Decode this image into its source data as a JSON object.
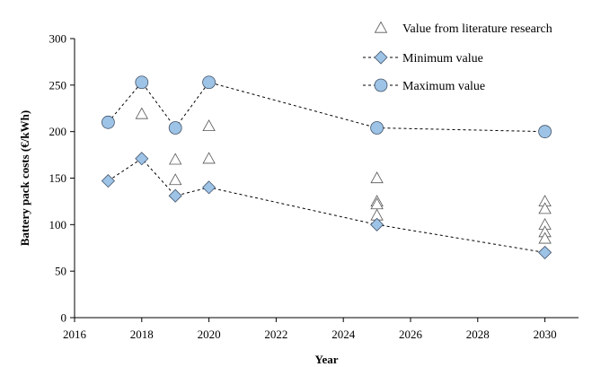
{
  "chart_data": {
    "type": "scatter",
    "xlabel": "Year",
    "ylabel": "Battery pack costs (€/kWh)",
    "xlim": [
      2016,
      2031
    ],
    "ylim": [
      0,
      300
    ],
    "x_ticks": [
      2016,
      2018,
      2020,
      2022,
      2024,
      2026,
      2028,
      2030
    ],
    "y_ticks": [
      0,
      50,
      100,
      150,
      200,
      250,
      300
    ],
    "grid": false,
    "legend_position": "top-right",
    "series": [
      {
        "name": "Value from literature research",
        "marker": "triangle",
        "line": false,
        "points": [
          {
            "x": 2018,
            "y": 219
          },
          {
            "x": 2019,
            "y": 170
          },
          {
            "x": 2019,
            "y": 148
          },
          {
            "x": 2020,
            "y": 206
          },
          {
            "x": 2020,
            "y": 171
          },
          {
            "x": 2025,
            "y": 150
          },
          {
            "x": 2025,
            "y": 125
          },
          {
            "x": 2025,
            "y": 122
          },
          {
            "x": 2025,
            "y": 110
          },
          {
            "x": 2030,
            "y": 125
          },
          {
            "x": 2030,
            "y": 117
          },
          {
            "x": 2030,
            "y": 100
          },
          {
            "x": 2030,
            "y": 92
          },
          {
            "x": 2030,
            "y": 85
          }
        ]
      },
      {
        "name": "Minimum value",
        "marker": "diamond",
        "line": true,
        "color": "#9dc3e6",
        "points": [
          {
            "x": 2017,
            "y": 147
          },
          {
            "x": 2018,
            "y": 171
          },
          {
            "x": 2019,
            "y": 131
          },
          {
            "x": 2020,
            "y": 140
          },
          {
            "x": 2025,
            "y": 100
          },
          {
            "x": 2030,
            "y": 70
          }
        ]
      },
      {
        "name": "Maximum value",
        "marker": "circle",
        "line": true,
        "color": "#9dc3e6",
        "points": [
          {
            "x": 2017,
            "y": 210
          },
          {
            "x": 2018,
            "y": 253
          },
          {
            "x": 2019,
            "y": 204
          },
          {
            "x": 2020,
            "y": 253
          },
          {
            "x": 2025,
            "y": 204
          },
          {
            "x": 2030,
            "y": 200
          }
        ]
      }
    ]
  }
}
